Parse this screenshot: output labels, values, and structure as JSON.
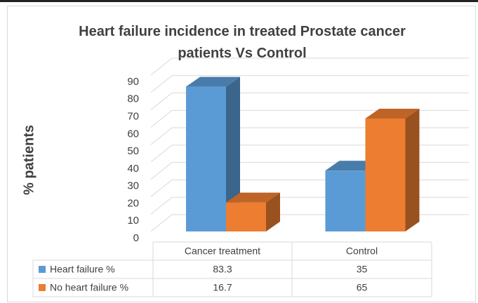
{
  "chart_data": {
    "type": "bar3d",
    "title": "Heart failure incidence in treated Prostate cancer patients Vs Control",
    "y_label": "% patients",
    "categories": [
      "Cancer treatment",
      "Control"
    ],
    "series": [
      {
        "name": "Heart failure %",
        "color": "#5b9bd5",
        "values": [
          83.3,
          35
        ]
      },
      {
        "name": "No heart failure %",
        "color": "#ed7d31",
        "values": [
          16.7,
          65
        ]
      }
    ],
    "ylim": [
      0,
      90
    ],
    "yticks": [
      0,
      10,
      20,
      30,
      40,
      50,
      60,
      70,
      80,
      90
    ],
    "grid": true,
    "legend": "table"
  }
}
